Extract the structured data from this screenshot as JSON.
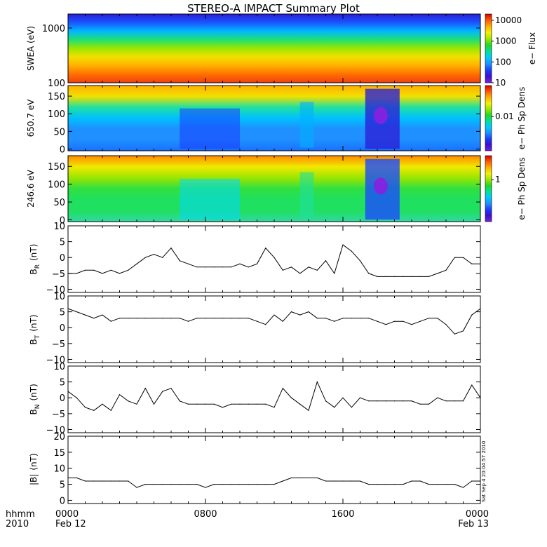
{
  "title": "STEREO-A IMPACT Summary Plot",
  "stamp": "Sat Sep  4 20:04:57 2010",
  "time_axis": {
    "label_top": "hhmm",
    "label_bottom": "2010",
    "ticks": [
      {
        "hour": 0,
        "label": "0000",
        "sublabel": "Feb 12"
      },
      {
        "hour": 8,
        "label": "0800",
        "sublabel": ""
      },
      {
        "hour": 16,
        "label": "1600",
        "sublabel": ""
      },
      {
        "hour": 24,
        "label": "0000",
        "sublabel": "Feb 13"
      }
    ],
    "range_hours": [
      0,
      24
    ]
  },
  "chart_data": [
    {
      "type": "heatmap",
      "ylabel": "SWEA (eV)",
      "yscale": "log",
      "ylim": [
        100,
        1800
      ],
      "yticks": [
        {
          "v": 100,
          "t": "100"
        },
        {
          "v": 1000,
          "t": "1000"
        }
      ],
      "colorbar": {
        "label": "e− Flux",
        "scale": "log",
        "range": [
          10,
          20000
        ],
        "ticks": [
          {
            "v": 10,
            "t": "10"
          },
          {
            "v": 100,
            "t": "100"
          },
          {
            "v": 1000,
            "t": "1000"
          },
          {
            "v": 10000,
            "t": "10000"
          }
        ]
      }
    },
    {
      "type": "heatmap",
      "ylabel": "650.7 eV",
      "ylim": [
        -5,
        180
      ],
      "yticks": [
        {
          "v": 0,
          "t": "0"
        },
        {
          "v": 50,
          "t": "50"
        },
        {
          "v": 100,
          "t": "100"
        },
        {
          "v": 150,
          "t": "150"
        }
      ],
      "colorbar": {
        "label": "e− Ph Sp Dens",
        "scale": "log",
        "range": [
          0.001,
          0.08
        ],
        "ticks": [
          {
            "v": 0.01,
            "t": "0.01"
          }
        ]
      }
    },
    {
      "type": "heatmap",
      "ylabel": "246.6 eV",
      "ylim": [
        -5,
        180
      ],
      "yticks": [
        {
          "v": 0,
          "t": "0"
        },
        {
          "v": 50,
          "t": "50"
        },
        {
          "v": 100,
          "t": "100"
        },
        {
          "v": 150,
          "t": "150"
        }
      ],
      "colorbar": {
        "label": "e− Ph Sp Dens",
        "scale": "log",
        "range": [
          0.06,
          5
        ],
        "ticks": [
          {
            "v": 1,
            "t": "1"
          }
        ]
      }
    },
    {
      "type": "line",
      "ylabel_main": "B",
      "ylabel_sub": "R",
      "ylabel_unit": "(nT)",
      "ylim": [
        -11,
        10
      ],
      "yticks": [
        {
          "v": -10,
          "t": "−10"
        },
        {
          "v": -5,
          "t": "−5"
        },
        {
          "v": 0,
          "t": "0"
        },
        {
          "v": 5,
          "t": "5"
        },
        {
          "v": 10,
          "t": "10"
        }
      ],
      "x": [
        0,
        0.5,
        1,
        1.5,
        2,
        2.5,
        3,
        3.5,
        4,
        4.5,
        5,
        5.5,
        6,
        6.5,
        7,
        7.5,
        8,
        8.5,
        9,
        9.5,
        10,
        10.5,
        11,
        11.5,
        12,
        12.5,
        13,
        13.5,
        14,
        14.5,
        15,
        15.5,
        16,
        16.5,
        17,
        17.5,
        18,
        18.5,
        19,
        19.5,
        20,
        20.5,
        21,
        21.5,
        22,
        22.5,
        23,
        23.5,
        24
      ],
      "values": [
        -5,
        -5,
        -4,
        -4,
        -5,
        -4,
        -5,
        -4,
        -2,
        0,
        1,
        0,
        3,
        -1,
        -2,
        -3,
        -3,
        -3,
        -3,
        -3,
        -2,
        -3,
        -2,
        3,
        0,
        -4,
        -3,
        -5,
        -3,
        -4,
        -1,
        -5,
        4,
        2,
        -1,
        -5,
        -6,
        -6,
        -6,
        -6,
        -6,
        -6,
        -6,
        -5,
        -4,
        0,
        0,
        -2,
        -2
      ]
    },
    {
      "type": "line",
      "ylabel_main": "B",
      "ylabel_sub": "T",
      "ylabel_unit": "(nT)",
      "ylim": [
        -11,
        10
      ],
      "yticks": [
        {
          "v": -10,
          "t": "−10"
        },
        {
          "v": -5,
          "t": "−5"
        },
        {
          "v": 0,
          "t": "0"
        },
        {
          "v": 5,
          "t": "5"
        },
        {
          "v": 10,
          "t": "10"
        }
      ],
      "x": [
        0,
        0.5,
        1,
        1.5,
        2,
        2.5,
        3,
        3.5,
        4,
        4.5,
        5,
        5.5,
        6,
        6.5,
        7,
        7.5,
        8,
        8.5,
        9,
        9.5,
        10,
        10.5,
        11,
        11.5,
        12,
        12.5,
        13,
        13.5,
        14,
        14.5,
        15,
        15.5,
        16,
        16.5,
        17,
        17.5,
        18,
        18.5,
        19,
        19.5,
        20,
        20.5,
        21,
        21.5,
        22,
        22.5,
        23,
        23.5,
        24
      ],
      "values": [
        6,
        5,
        4,
        3,
        4,
        2,
        3,
        3,
        3,
        3,
        3,
        3,
        3,
        3,
        2,
        3,
        3,
        3,
        3,
        3,
        3,
        3,
        2,
        1,
        4,
        2,
        5,
        4,
        5,
        3,
        3,
        2,
        3,
        3,
        3,
        3,
        2,
        1,
        2,
        2,
        1,
        2,
        3,
        3,
        1,
        -2,
        -1,
        4,
        6
      ]
    },
    {
      "type": "line",
      "ylabel_main": "B",
      "ylabel_sub": "N",
      "ylabel_unit": "(nT)",
      "ylim": [
        -11,
        10
      ],
      "yticks": [
        {
          "v": -10,
          "t": "−10"
        },
        {
          "v": -5,
          "t": "−5"
        },
        {
          "v": 0,
          "t": "0"
        },
        {
          "v": 5,
          "t": "5"
        },
        {
          "v": 10,
          "t": "10"
        }
      ],
      "x": [
        0,
        0.5,
        1,
        1.5,
        2,
        2.5,
        3,
        3.5,
        4,
        4.5,
        5,
        5.5,
        6,
        6.5,
        7,
        7.5,
        8,
        8.5,
        9,
        9.5,
        10,
        10.5,
        11,
        11.5,
        12,
        12.5,
        13,
        13.5,
        14,
        14.5,
        15,
        15.5,
        16,
        16.5,
        17,
        17.5,
        18,
        18.5,
        19,
        19.5,
        20,
        20.5,
        21,
        21.5,
        22,
        22.5,
        23,
        23.5,
        24
      ],
      "values": [
        2,
        0,
        -3,
        -4,
        -2,
        -4,
        1,
        -1,
        -2,
        3,
        -2,
        2,
        3,
        -1,
        -2,
        -2,
        -2,
        -2,
        -3,
        -2,
        -2,
        -2,
        -2,
        -2,
        -3,
        3,
        0,
        -2,
        -4,
        5,
        -1,
        -3,
        0,
        -3,
        0,
        -1,
        -1,
        -1,
        -1,
        -1,
        -1,
        -2,
        -2,
        0,
        -1,
        -1,
        -1,
        4,
        0
      ]
    },
    {
      "type": "line",
      "ylabel_main": "|B|",
      "ylabel_sub": "",
      "ylabel_unit": "(nT)",
      "ylim": [
        -1,
        20
      ],
      "yticks": [
        {
          "v": 0,
          "t": "0"
        },
        {
          "v": 5,
          "t": "5"
        },
        {
          "v": 10,
          "t": "10"
        },
        {
          "v": 15,
          "t": "15"
        },
        {
          "v": 20,
          "t": "20"
        }
      ],
      "x": [
        0,
        0.5,
        1,
        1.5,
        2,
        2.5,
        3,
        3.5,
        4,
        4.5,
        5,
        5.5,
        6,
        6.5,
        7,
        7.5,
        8,
        8.5,
        9,
        9.5,
        10,
        10.5,
        11,
        11.5,
        12,
        12.5,
        13,
        13.5,
        14,
        14.5,
        15,
        15.5,
        16,
        16.5,
        17,
        17.5,
        18,
        18.5,
        19,
        19.5,
        20,
        20.5,
        21,
        21.5,
        22,
        22.5,
        23,
        23.5,
        24
      ],
      "values": [
        7,
        7,
        6,
        6,
        6,
        6,
        6,
        6,
        4,
        5,
        5,
        5,
        5,
        5,
        5,
        5,
        4,
        5,
        5,
        5,
        5,
        5,
        5,
        5,
        5,
        6,
        7,
        7,
        7,
        7,
        6,
        6,
        6,
        6,
        6,
        5,
        5,
        5,
        5,
        5,
        6,
        6,
        5,
        5,
        5,
        5,
        4,
        6,
        6
      ]
    }
  ]
}
